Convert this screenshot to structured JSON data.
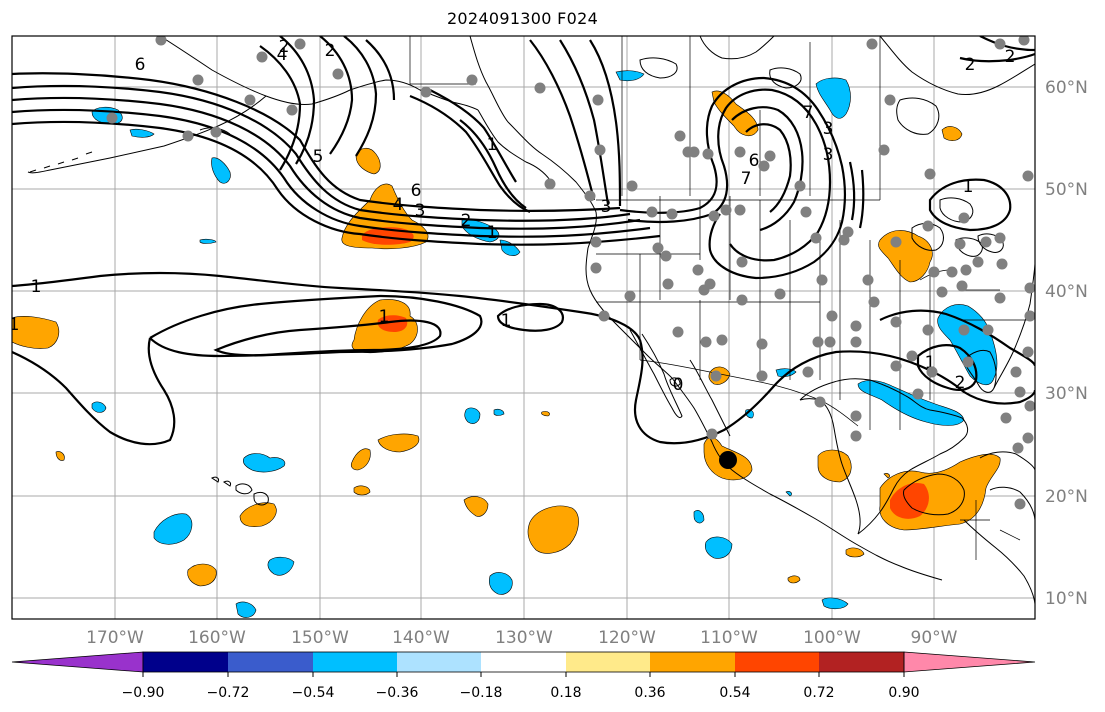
{
  "title": "2024091300 F024",
  "map": {
    "lon_labels": [
      "170°W",
      "160°W",
      "150°W",
      "140°W",
      "130°W",
      "120°W",
      "110°W",
      "100°W",
      "90°W"
    ],
    "lat_labels": [
      "60°N",
      "50°N",
      "40°N",
      "30°N",
      "20°N",
      "10°N"
    ],
    "gridlines": true,
    "lon_range": [
      -180,
      -80
    ],
    "lat_range": [
      8,
      65
    ]
  },
  "contour_labels": [
    "6",
    "5",
    "4",
    "3",
    "2",
    "1",
    "2",
    "2",
    "1",
    "6",
    "4",
    "3",
    "2",
    "1",
    "1",
    "1",
    "2",
    "1",
    "0",
    "6",
    "7",
    "3",
    "3",
    "7",
    "1",
    "2",
    "1"
  ],
  "colorbar": {
    "ticks": [
      "−0.90",
      "−0.72",
      "−0.54",
      "−0.36",
      "−0.18",
      "0.18",
      "0.36",
      "0.54",
      "0.72",
      "0.90"
    ],
    "colors": [
      "#9932cc",
      "#00008b",
      "#3a5ccc",
      "#00bfff",
      "#ade2ff",
      "#ffffff",
      "#ffea8a",
      "#ffa500",
      "#ff4500",
      "#b22222",
      "#ff88aa"
    ]
  },
  "colors": {
    "positive_strong": "#ff4500",
    "positive": "#ffa500",
    "negative": "#00bfff",
    "station_dot": "#808080",
    "contour": "#000000"
  }
}
